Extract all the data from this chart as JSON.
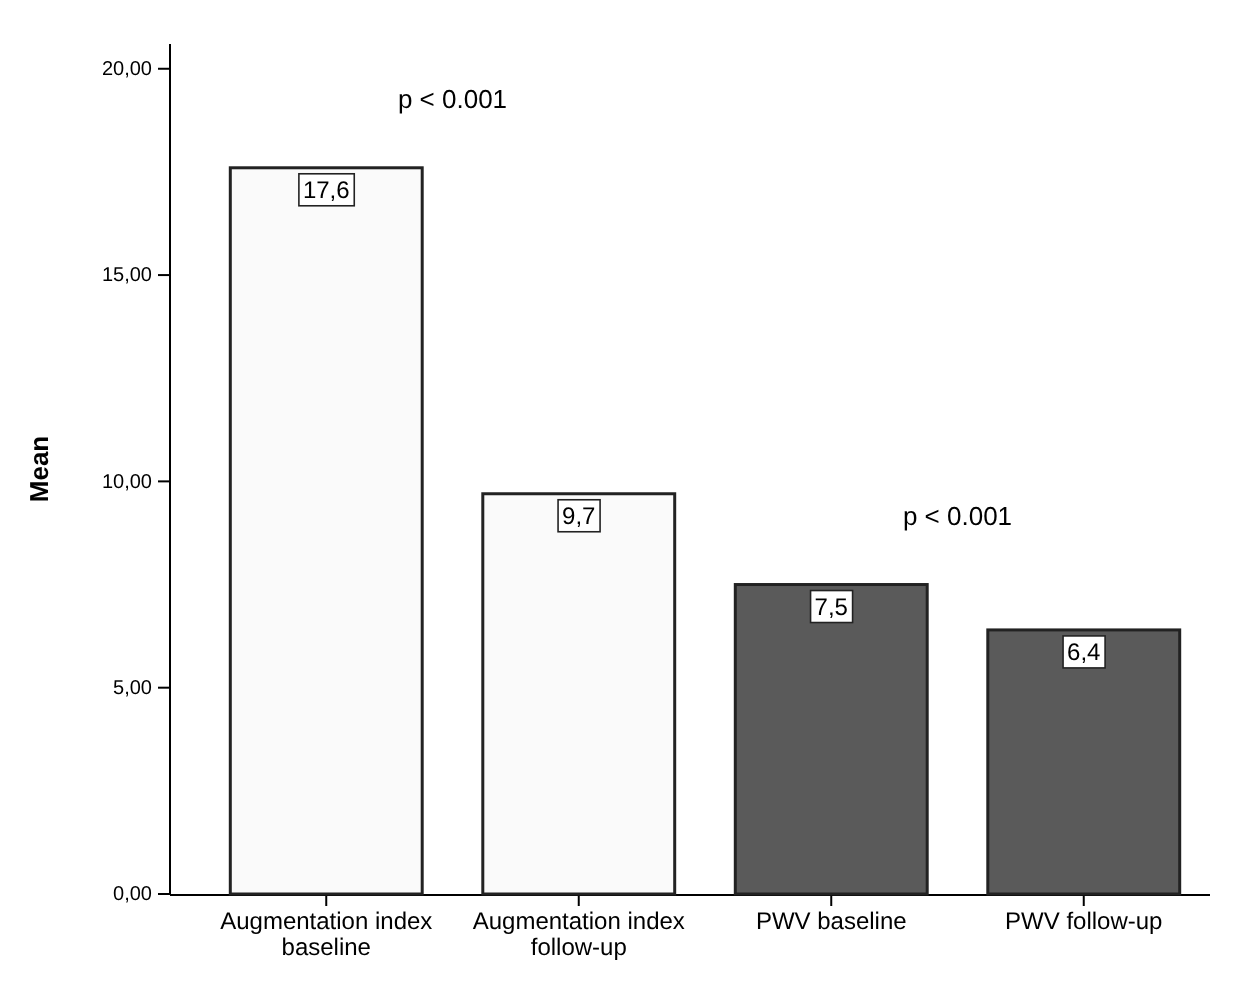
{
  "chart_data": {
    "type": "bar",
    "ylabel": "Mean",
    "categories": [
      "Augmentation index baseline",
      "Augmentation index follow-up",
      "PWV baseline",
      "PWV follow-up"
    ],
    "values": [
      17.6,
      9.7,
      7.5,
      6.4
    ],
    "colors": [
      "#fafafa",
      "#fafafa",
      "#5a5a5a",
      "#5a5a5a"
    ],
    "value_labels": [
      "17,6",
      "9,7",
      "7,5",
      "6,4"
    ],
    "ylim": [
      0,
      20.6
    ],
    "yticks": [
      {
        "value": 0,
        "label": "0,00"
      },
      {
        "value": 5,
        "label": "5,00"
      },
      {
        "value": 10,
        "label": "10,00"
      },
      {
        "value": 15,
        "label": "15,00"
      },
      {
        "value": 20,
        "label": "20,00"
      }
    ],
    "annotations": [
      "p < 0.001",
      "p < 0.001"
    ]
  }
}
